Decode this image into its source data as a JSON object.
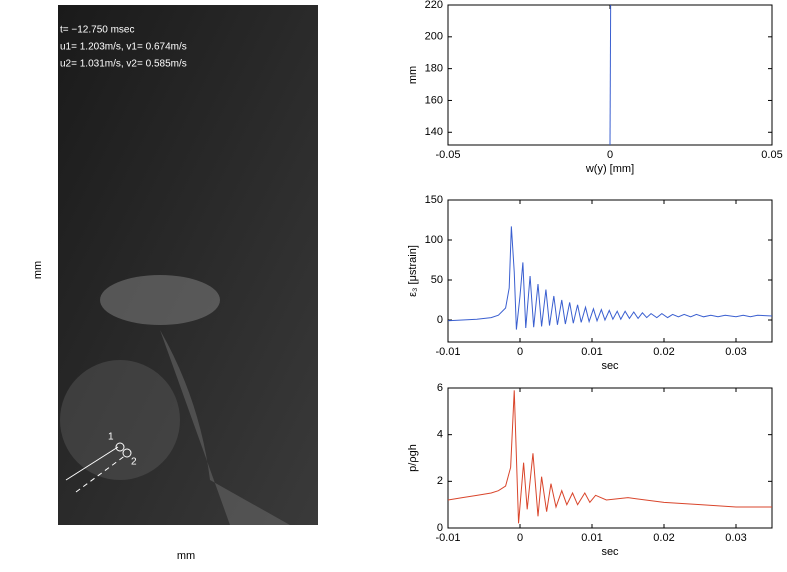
{
  "image": {
    "overlay": [
      "t= −12.750 msec",
      "u1= 1.203m/s, v1= 0.674m/s",
      "u2= 1.031m/s, v2= 0.585m/s"
    ],
    "markers": [
      "1",
      "2"
    ],
    "xlabel": "mm",
    "ylabel": "mm"
  },
  "chart_data": [
    {
      "type": "line",
      "xlabel": "w(y) [mm]",
      "ylabel": "mm",
      "xlim": [
        -0.05,
        0.05
      ],
      "xticks": [
        -0.05,
        0,
        0.05
      ],
      "ylim": [
        132,
        220
      ],
      "yticks": [
        140,
        160,
        180,
        200,
        220
      ],
      "series": [
        {
          "color": "#3a5fd0",
          "x": [
            0,
            0.0002
          ],
          "values": [
            132,
            220
          ]
        }
      ]
    },
    {
      "type": "line",
      "xlabel": "sec",
      "ylabel": "ε₃ [μstrain]",
      "xlim": [
        -0.01,
        0.035
      ],
      "xticks": [
        -0.01,
        0,
        0.01,
        0.02,
        0.03
      ],
      "ylim": [
        -27.5,
        150
      ],
      "yticks": [
        0,
        50,
        100,
        150
      ],
      "series": [
        {
          "color": "#3a5fd0",
          "x": [
            -0.01,
            -0.008,
            -0.006,
            -0.004,
            -0.003,
            -0.002,
            -0.0015,
            -0.0012,
            -0.0008,
            -0.0005,
            0.0,
            0.0004,
            0.0008,
            0.0014,
            0.0019,
            0.0025,
            0.003,
            0.0036,
            0.0041,
            0.0047,
            0.0052,
            0.0058,
            0.0063,
            0.0069,
            0.0074,
            0.008,
            0.0085,
            0.0091,
            0.0096,
            0.0102,
            0.0107,
            0.0113,
            0.0118,
            0.0124,
            0.0129,
            0.0135,
            0.014,
            0.0146,
            0.0152,
            0.0158,
            0.0164,
            0.017,
            0.0176,
            0.0182,
            0.019,
            0.0197,
            0.0205,
            0.0212,
            0.022,
            0.0228,
            0.0237,
            0.0245,
            0.0255,
            0.0265,
            0.0275,
            0.0285,
            0.03,
            0.031,
            0.032,
            0.033,
            0.035
          ],
          "values": [
            -1,
            0,
            1,
            3,
            6,
            15,
            40,
            117,
            60,
            -12,
            30,
            72,
            -10,
            55,
            -9,
            45,
            -8,
            38,
            -7,
            30,
            -6,
            25,
            -5,
            22,
            -4,
            19,
            -3,
            16,
            -2,
            14,
            -1,
            13,
            0,
            12,
            1,
            11,
            1,
            11,
            2,
            10,
            2,
            9,
            3,
            8,
            3,
            8,
            3,
            7,
            4,
            7,
            4,
            7,
            4,
            6,
            4,
            6,
            4,
            6,
            4,
            6,
            5
          ]
        }
      ]
    },
    {
      "type": "line",
      "xlabel": "sec",
      "ylabel": "p/ρgh",
      "xlim": [
        -0.01,
        0.035
      ],
      "xticks": [
        -0.01,
        0,
        0.01,
        0.02,
        0.03
      ],
      "ylim": [
        0,
        6
      ],
      "yticks": [
        0,
        2,
        4,
        6
      ],
      "series": [
        {
          "color": "#d9452b",
          "x": [
            -0.01,
            -0.008,
            -0.006,
            -0.004,
            -0.003,
            -0.002,
            -0.0013,
            -0.0008,
            -0.0002,
            0.0005,
            0.001,
            0.0018,
            0.0025,
            0.003,
            0.0037,
            0.0043,
            0.005,
            0.0058,
            0.0065,
            0.0073,
            0.008,
            0.009,
            0.0097,
            0.0105,
            0.012,
            0.015,
            0.02,
            0.025,
            0.03,
            0.035
          ],
          "values": [
            1.2,
            1.3,
            1.4,
            1.5,
            1.6,
            1.8,
            2.6,
            5.9,
            0.2,
            2.8,
            0.8,
            3.2,
            0.5,
            2.2,
            0.7,
            1.9,
            0.9,
            1.6,
            1.0,
            1.5,
            1.0,
            1.5,
            1.1,
            1.4,
            1.2,
            1.3,
            1.1,
            1.0,
            0.9,
            0.9
          ]
        }
      ]
    }
  ]
}
